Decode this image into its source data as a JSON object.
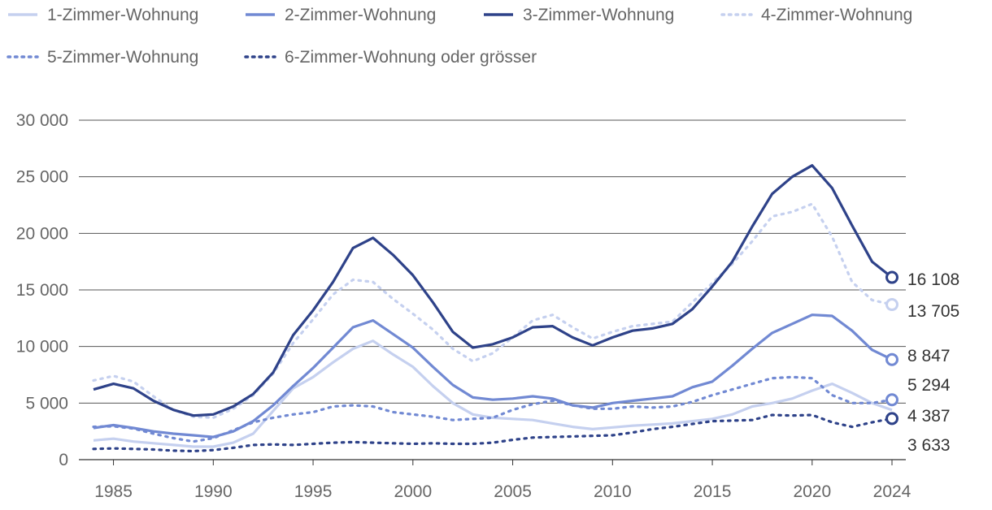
{
  "chart_data": {
    "type": "line",
    "title": "",
    "xlabel": "",
    "ylabel": "",
    "xlim": [
      1984,
      2024
    ],
    "ylim": [
      0,
      30000
    ],
    "y_ticks": [
      0,
      5000,
      10000,
      15000,
      20000,
      25000,
      30000
    ],
    "y_tick_labels": [
      "0",
      "5 000",
      "10 000",
      "15 000",
      "20 000",
      "25 000",
      "30 000"
    ],
    "x_ticks": [
      1985,
      1990,
      1995,
      2000,
      2005,
      2010,
      2015,
      2020,
      2024
    ],
    "x_tick_labels": [
      "1985",
      "1990",
      "1995",
      "2000",
      "2005",
      "2010",
      "2015",
      "2020",
      "2024"
    ],
    "grid": true,
    "legend_position": "top",
    "x": [
      1984,
      1985,
      1986,
      1987,
      1988,
      1989,
      1990,
      1991,
      1992,
      1993,
      1994,
      1995,
      1996,
      1997,
      1998,
      1999,
      2000,
      2001,
      2002,
      2003,
      2004,
      2005,
      2006,
      2007,
      2008,
      2009,
      2010,
      2011,
      2012,
      2013,
      2014,
      2015,
      2016,
      2017,
      2018,
      2019,
      2020,
      2021,
      2022,
      2023,
      2024
    ],
    "series": [
      {
        "name": "1-Zimmer-Wohnung",
        "color": "#c5d0ef",
        "dash": "solid",
        "end_label": "4 387",
        "values": [
          1700,
          1850,
          1600,
          1450,
          1300,
          1150,
          1150,
          1500,
          2300,
          4300,
          6300,
          7300,
          8600,
          9800,
          10500,
          9300,
          8200,
          6500,
          5000,
          4000,
          3700,
          3600,
          3500,
          3200,
          2900,
          2700,
          2850,
          3000,
          3100,
          3200,
          3400,
          3600,
          4000,
          4700,
          5000,
          5400,
          6100,
          6700,
          5900,
          5000,
          4387
        ]
      },
      {
        "name": "2-Zimmer-Wohnung",
        "color": "#7189d3",
        "dash": "solid",
        "end_label": "8 847",
        "values": [
          2800,
          3050,
          2800,
          2500,
          2300,
          2150,
          2000,
          2500,
          3400,
          4800,
          6500,
          8100,
          9900,
          11700,
          12300,
          11100,
          9900,
          8200,
          6600,
          5500,
          5300,
          5400,
          5600,
          5400,
          4800,
          4600,
          5000,
          5200,
          5400,
          5600,
          6400,
          6900,
          8300,
          9800,
          11200,
          12000,
          12800,
          12700,
          11400,
          9700,
          8847
        ]
      },
      {
        "name": "3-Zimmer-Wohnung",
        "color": "#2e4289",
        "dash": "solid",
        "end_label": "16 108",
        "values": [
          6200,
          6700,
          6300,
          5200,
          4400,
          3900,
          4000,
          4700,
          5800,
          7700,
          11000,
          13200,
          15700,
          18700,
          19600,
          18100,
          16300,
          13900,
          11300,
          9900,
          10200,
          10800,
          11700,
          11800,
          10800,
          10100,
          10800,
          11400,
          11600,
          12000,
          13300,
          15300,
          17500,
          20600,
          23500,
          25000,
          26000,
          24000,
          20700,
          17500,
          16108
        ]
      },
      {
        "name": "4-Zimmer-Wohnung",
        "color": "#c5d0ef",
        "dash": "dotted",
        "end_label": "13 705",
        "values": [
          7000,
          7400,
          6900,
          5600,
          4400,
          3800,
          3700,
          4500,
          5700,
          7600,
          10300,
          12400,
          14600,
          15900,
          15700,
          14200,
          12900,
          11500,
          9800,
          8700,
          9400,
          10800,
          12300,
          12800,
          11700,
          10700,
          11300,
          11800,
          12000,
          12200,
          13900,
          15600,
          17300,
          19300,
          21500,
          21900,
          22600,
          19700,
          15700,
          14100,
          13705
        ]
      },
      {
        "name": "5-Zimmer-Wohnung",
        "color": "#7189d3",
        "dash": "dotted",
        "end_label": "5 294",
        "values": [
          2900,
          2950,
          2750,
          2300,
          1900,
          1600,
          1900,
          2600,
          3300,
          3700,
          4000,
          4200,
          4700,
          4800,
          4700,
          4200,
          4000,
          3800,
          3500,
          3600,
          3700,
          4400,
          4900,
          5200,
          4800,
          4500,
          4500,
          4700,
          4600,
          4700,
          5100,
          5700,
          6200,
          6700,
          7200,
          7300,
          7200,
          5700,
          5000,
          5000,
          5294
        ]
      },
      {
        "name": "6-Zimmer-Wohnung oder grösser",
        "color": "#2e4289",
        "dash": "dotted",
        "end_label": "3 633",
        "values": [
          950,
          1000,
          950,
          900,
          800,
          750,
          850,
          1050,
          1300,
          1350,
          1300,
          1400,
          1500,
          1550,
          1500,
          1450,
          1400,
          1450,
          1400,
          1400,
          1500,
          1750,
          1950,
          2000,
          2050,
          2100,
          2150,
          2400,
          2700,
          2900,
          3150,
          3400,
          3450,
          3500,
          3950,
          3900,
          3950,
          3300,
          2900,
          3300,
          3633
        ]
      }
    ]
  }
}
